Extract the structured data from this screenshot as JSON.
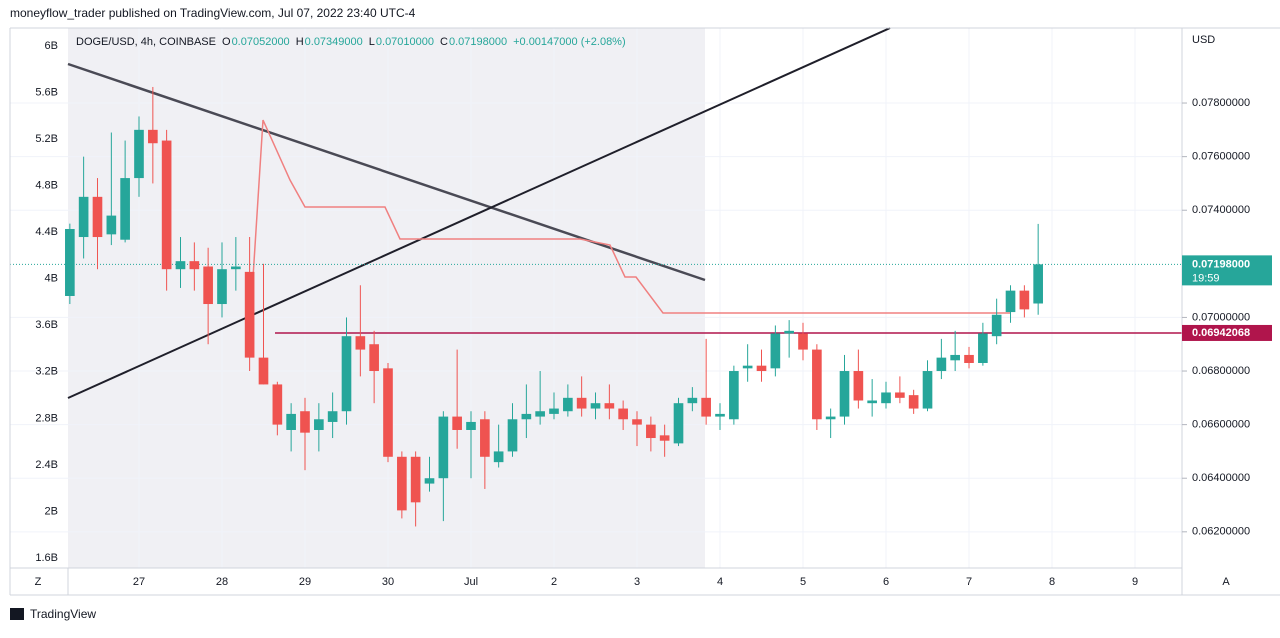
{
  "header": {
    "published": "moneyflow_trader published on TradingView.com, Jul 07, 2022 23:40 UTC-4"
  },
  "ui": {
    "currency": "USD",
    "left_button": "Z",
    "right_button": "A",
    "brand": "TradingView"
  },
  "chart_data": {
    "type": "candlestick",
    "title": "DOGE/USD, 4h, COINBASE",
    "legend_values": [
      {
        "key": "O",
        "text": "0.07052000"
      },
      {
        "key": "H",
        "text": "0.07349000"
      },
      {
        "key": "L",
        "text": "0.07010000"
      },
      {
        "key": "C",
        "text": "0.07198000"
      }
    ],
    "change": "+0.00147000 (+2.08%)",
    "up_color": "#26a69a",
    "down_color": "#ef5350",
    "x": [
      26.167,
      26.333,
      26.5,
      26.667,
      26.833,
      27,
      27.167,
      27.333,
      27.5,
      27.667,
      27.833,
      28,
      28.167,
      28.333,
      28.5,
      28.667,
      28.833,
      29,
      29.167,
      29.333,
      29.5,
      29.667,
      29.833,
      30,
      30.167,
      30.333,
      30.5,
      30.667,
      30.833,
      31,
      31.167,
      31.333,
      31.5,
      31.667,
      31.833,
      32,
      32.167,
      32.333,
      32.5,
      32.667,
      32.833,
      33,
      33.167,
      33.333,
      33.5,
      33.667,
      33.833,
      34,
      34.167,
      34.333,
      34.5,
      34.667,
      34.833,
      35,
      35.167,
      35.333,
      35.5,
      35.667,
      35.833,
      36,
      36.167,
      36.333,
      36.5,
      36.667,
      36.833,
      37,
      37.167,
      37.333,
      37.5,
      37.667,
      37.833
    ],
    "open": [
      0.0708,
      0.073,
      0.0745,
      0.0731,
      0.0729,
      0.0752,
      0.077,
      0.0766,
      0.0718,
      0.0721,
      0.0719,
      0.0705,
      0.0718,
      0.0717,
      0.0685,
      0.0675,
      0.0658,
      0.0665,
      0.0658,
      0.0661,
      0.0665,
      0.0693,
      0.069,
      0.0681,
      0.0648,
      0.0648,
      0.0638,
      0.064,
      0.0663,
      0.0658,
      0.0662,
      0.0646,
      0.065,
      0.0662,
      0.0663,
      0.0664,
      0.0665,
      0.067,
      0.0666,
      0.0668,
      0.0666,
      0.0662,
      0.066,
      0.0656,
      0.0653,
      0.0668,
      0.067,
      0.0663,
      0.0662,
      0.0681,
      0.0682,
      0.0681,
      0.0694,
      0.0694,
      0.0688,
      0.0662,
      0.0663,
      0.068,
      0.0668,
      0.0668,
      0.0672,
      0.0671,
      0.0666,
      0.068,
      0.0684,
      0.0686,
      0.0683,
      0.0693,
      0.0702,
      0.071,
      0.07052
    ],
    "high": [
      0.0735,
      0.076,
      0.0752,
      0.0769,
      0.0766,
      0.0775,
      0.0786,
      0.077,
      0.073,
      0.0728,
      0.0726,
      0.0728,
      0.073,
      0.073,
      0.072,
      0.0676,
      0.0668,
      0.067,
      0.0668,
      0.0672,
      0.07,
      0.0712,
      0.0695,
      0.0683,
      0.065,
      0.065,
      0.0648,
      0.0665,
      0.0688,
      0.0665,
      0.0665,
      0.066,
      0.0668,
      0.0675,
      0.068,
      0.0672,
      0.0675,
      0.0678,
      0.0672,
      0.0675,
      0.0669,
      0.0665,
      0.0663,
      0.066,
      0.067,
      0.0674,
      0.0692,
      0.0668,
      0.0682,
      0.069,
      0.0688,
      0.0697,
      0.0699,
      0.0698,
      0.069,
      0.0666,
      0.0686,
      0.0688,
      0.0677,
      0.0676,
      0.0678,
      0.0673,
      0.0684,
      0.0692,
      0.0695,
      0.0689,
      0.0698,
      0.0707,
      0.0712,
      0.0712,
      0.07349
    ],
    "low": [
      0.0705,
      0.0722,
      0.0718,
      0.0727,
      0.0728,
      0.0745,
      0.075,
      0.071,
      0.0711,
      0.071,
      0.069,
      0.07,
      0.071,
      0.068,
      0.0675,
      0.0656,
      0.065,
      0.0643,
      0.065,
      0.0655,
      0.066,
      0.0678,
      0.0668,
      0.0646,
      0.0625,
      0.0622,
      0.0635,
      0.0624,
      0.0651,
      0.064,
      0.0636,
      0.0644,
      0.0648,
      0.0655,
      0.066,
      0.0662,
      0.0663,
      0.0663,
      0.0662,
      0.0662,
      0.0658,
      0.0652,
      0.065,
      0.0648,
      0.0652,
      0.0665,
      0.066,
      0.0658,
      0.066,
      0.0676,
      0.0676,
      0.0678,
      0.0685,
      0.0684,
      0.0658,
      0.0655,
      0.066,
      0.0666,
      0.0663,
      0.0666,
      0.0668,
      0.0664,
      0.0665,
      0.0677,
      0.068,
      0.0681,
      0.0682,
      0.069,
      0.0698,
      0.07,
      0.0701
    ],
    "close": [
      0.0733,
      0.0745,
      0.073,
      0.0738,
      0.0752,
      0.077,
      0.0765,
      0.0718,
      0.0721,
      0.0718,
      0.0705,
      0.0718,
      0.0719,
      0.0685,
      0.0675,
      0.066,
      0.0664,
      0.0657,
      0.0662,
      0.0665,
      0.0693,
      0.0688,
      0.068,
      0.0648,
      0.0628,
      0.0631,
      0.064,
      0.0663,
      0.0658,
      0.0661,
      0.0648,
      0.065,
      0.0662,
      0.0664,
      0.0665,
      0.0666,
      0.067,
      0.0666,
      0.0668,
      0.0666,
      0.0662,
      0.066,
      0.0655,
      0.0654,
      0.0668,
      0.067,
      0.0663,
      0.0664,
      0.068,
      0.0682,
      0.068,
      0.0694,
      0.0695,
      0.0688,
      0.0662,
      0.0663,
      0.068,
      0.0669,
      0.0669,
      0.0672,
      0.067,
      0.0666,
      0.068,
      0.0685,
      0.0686,
      0.0683,
      0.0694,
      0.0701,
      0.071,
      0.0703,
      0.07198
    ],
    "xlim": [
      25.446,
      39.566
    ],
    "xticks": [
      {
        "value": 27,
        "label": "27"
      },
      28,
      29,
      30,
      {
        "value": 31,
        "label": "Jul"
      },
      {
        "value": 32,
        "label": "2"
      },
      {
        "value": 33,
        "label": "3"
      },
      {
        "value": 34,
        "label": "4"
      },
      {
        "value": 35,
        "label": "5"
      },
      {
        "value": 36,
        "label": "6"
      },
      {
        "value": 37,
        "label": "7"
      },
      {
        "value": 38,
        "label": "8"
      },
      {
        "value": 39,
        "label": "9"
      }
    ],
    "ylim": [
      0.06065,
      0.0808
    ],
    "yticks": [
      {
        "value": 0.078,
        "label": "0.07800000"
      },
      {
        "value": 0.076,
        "label": "0.07600000"
      },
      {
        "value": 0.074,
        "label": "0.07400000"
      },
      {
        "value": 0.07,
        "label": "0.07000000"
      },
      {
        "value": 0.068,
        "label": "0.06800000"
      },
      {
        "value": 0.066,
        "label": "0.06600000"
      },
      {
        "value": 0.064,
        "label": "0.06400000"
      },
      {
        "value": 0.062,
        "label": "0.06200000"
      }
    ],
    "y2lim": [
      1.514,
      6.155
    ],
    "y2ticks": [
      {
        "value": 6,
        "label": "6B"
      },
      {
        "value": 5.6,
        "label": "5.6B"
      },
      {
        "value": 5.2,
        "label": "5.2B"
      },
      {
        "value": 4.8,
        "label": "4.8B"
      },
      {
        "value": 4.4,
        "label": "4.4B"
      },
      {
        "value": 4,
        "label": "4B"
      },
      {
        "value": 3.6,
        "label": "3.6B"
      },
      {
        "value": 3.2,
        "label": "3.2B"
      },
      {
        "value": 2.8,
        "label": "2.8B"
      },
      {
        "value": 2.4,
        "label": "2.4B"
      },
      {
        "value": 2,
        "label": "2B"
      },
      {
        "value": 1.6,
        "label": "1.6B"
      }
    ],
    "level_line": {
      "value": 0.06942068,
      "label": "0.06942068",
      "color": "#b0154c"
    },
    "last_price": {
      "value": 0.07198,
      "label": "0.07198000",
      "countdown": "19:59",
      "color": "#26a69a"
    }
  }
}
